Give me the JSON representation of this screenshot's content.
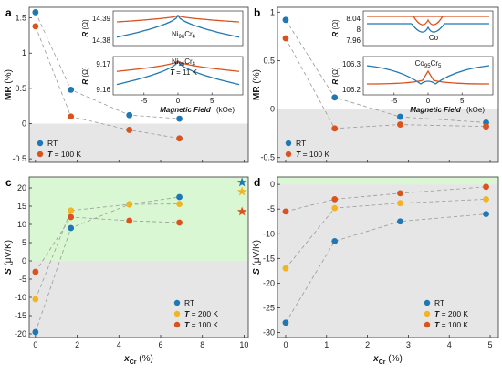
{
  "colors": {
    "rt": "#1f77b4",
    "t200": "#f2b424",
    "t100": "#d9531e",
    "neg_region": "#e6e6e6",
    "pos_region": "#d9f7d2",
    "guide": "#9a9a9a"
  },
  "chart_data": [
    {
      "panel": "a",
      "type": "scatter",
      "ylabel": "MR (%)",
      "ylim": [
        -0.55,
        1.65
      ],
      "yticks": [
        -0.5,
        0,
        0.5,
        1,
        1.5
      ],
      "xlim": [
        -0.3,
        10.2
      ],
      "xticks": [
        0,
        2,
        4,
        6,
        8,
        10
      ],
      "show_xticklabels": false,
      "shade": "below-zero",
      "legend": "bottom-left",
      "series": [
        {
          "name": "RT",
          "key": "rt",
          "x": [
            0,
            1.7,
            4.5,
            6.9
          ],
          "y": [
            1.58,
            0.48,
            0.12,
            0.07
          ]
        },
        {
          "name": "T = 100 K",
          "key": "t100",
          "x": [
            0,
            1.7,
            4.5,
            6.9
          ],
          "y": [
            1.38,
            0.1,
            -0.09,
            -0.21
          ]
        }
      ],
      "insets": [
        {
          "label": "Ni96Cr4",
          "ylabel": "R (Ω)",
          "yticks": [
            "14.39",
            "14.38"
          ]
        },
        {
          "label": "Ni96Cr4",
          "label2": "T = 11 K",
          "ylabel": "R (Ω)",
          "yticks": [
            "9.17",
            "9.16"
          ],
          "xticks": [
            "-5",
            "0",
            "5"
          ],
          "xlabel": "Magnetic Field",
          "xunit": "(kOe)"
        }
      ]
    },
    {
      "panel": "b",
      "type": "scatter",
      "ylabel": "MR (%)",
      "ylim": [
        -0.55,
        1.05
      ],
      "yticks": [
        -0.5,
        0,
        0.5,
        1
      ],
      "xlim": [
        -0.2,
        5.2
      ],
      "xticks": [
        0,
        1,
        2,
        3,
        4,
        5
      ],
      "show_xticklabels": false,
      "shade": "below-zero",
      "legend": "bottom-left",
      "series": [
        {
          "name": "RT",
          "key": "rt",
          "x": [
            0,
            1.2,
            2.8,
            4.9
          ],
          "y": [
            0.92,
            0.12,
            -0.08,
            -0.14
          ]
        },
        {
          "name": "T = 100 K",
          "key": "t100",
          "x": [
            0,
            1.2,
            2.8,
            4.9
          ],
          "y": [
            0.73,
            -0.2,
            -0.16,
            -0.18
          ]
        }
      ],
      "insets": [
        {
          "label": "Co",
          "ylabel": "R (Ω)",
          "yticks": [
            "8.04",
            "8",
            "7.96"
          ]
        },
        {
          "label": "Co95Cr5",
          "ylabel": "R (Ω)",
          "yticks": [
            "106.3",
            "106.2"
          ],
          "xticks": [
            "-5",
            "0",
            "5"
          ],
          "xlabel": "Magnetic Field",
          "xunit": "(kOe)"
        }
      ]
    },
    {
      "panel": "c",
      "type": "scatter",
      "ylabel": "S (μV/K)",
      "xlabel": "x_Cr (%)",
      "ylim": [
        -21,
        23
      ],
      "yticks": [
        -20,
        -15,
        -10,
        -5,
        0,
        5,
        10,
        15,
        20
      ],
      "xlim": [
        -0.3,
        10.2
      ],
      "xticks": [
        0,
        2,
        4,
        6,
        8,
        10
      ],
      "shade": "above-zero",
      "legend": "bottom-right",
      "series": [
        {
          "name": "RT",
          "key": "rt",
          "x": [
            0,
            1.7,
            4.5,
            6.9
          ],
          "y": [
            -19.5,
            9.0,
            15.5,
            17.5
          ]
        },
        {
          "name": "T = 200 K",
          "key": "t200",
          "x": [
            0,
            1.7,
            4.5,
            6.9
          ],
          "y": [
            -10.5,
            13.8,
            15.5,
            15.6
          ]
        },
        {
          "name": "T = 100 K",
          "key": "t100",
          "x": [
            0,
            1.7,
            4.5,
            6.9
          ],
          "y": [
            -3.0,
            12.0,
            11.0,
            10.5
          ]
        }
      ],
      "stars": [
        {
          "key": "rt",
          "x": 9.9,
          "y": 21.5
        },
        {
          "key": "t200",
          "x": 9.9,
          "y": 19.0
        },
        {
          "key": "t100",
          "x": 9.9,
          "y": 13.5
        }
      ]
    },
    {
      "panel": "d",
      "type": "scatter",
      "ylabel": "S (μV/K)",
      "xlabel": "x_Cr (%)",
      "ylim": [
        -31,
        1.5
      ],
      "yticks": [
        -30,
        -25,
        -20,
        -15,
        -10,
        -5,
        0
      ],
      "xlim": [
        -0.2,
        5.2
      ],
      "xticks": [
        0,
        1,
        2,
        3,
        4,
        5
      ],
      "shade": "below-zero",
      "legend": "bottom-right",
      "series": [
        {
          "name": "RT",
          "key": "rt",
          "x": [
            0,
            1.2,
            2.8,
            4.9
          ],
          "y": [
            -28.0,
            -11.5,
            -7.5,
            -6.0
          ]
        },
        {
          "name": "T = 200 K",
          "key": "t200",
          "x": [
            0,
            1.2,
            2.8,
            4.9
          ],
          "y": [
            -17.0,
            -4.8,
            -3.8,
            -3.0
          ]
        },
        {
          "name": "T = 100 K",
          "key": "t100",
          "x": [
            0,
            1.2,
            2.8,
            4.9
          ],
          "y": [
            -5.5,
            -3.0,
            -1.8,
            -0.5
          ]
        }
      ]
    }
  ]
}
